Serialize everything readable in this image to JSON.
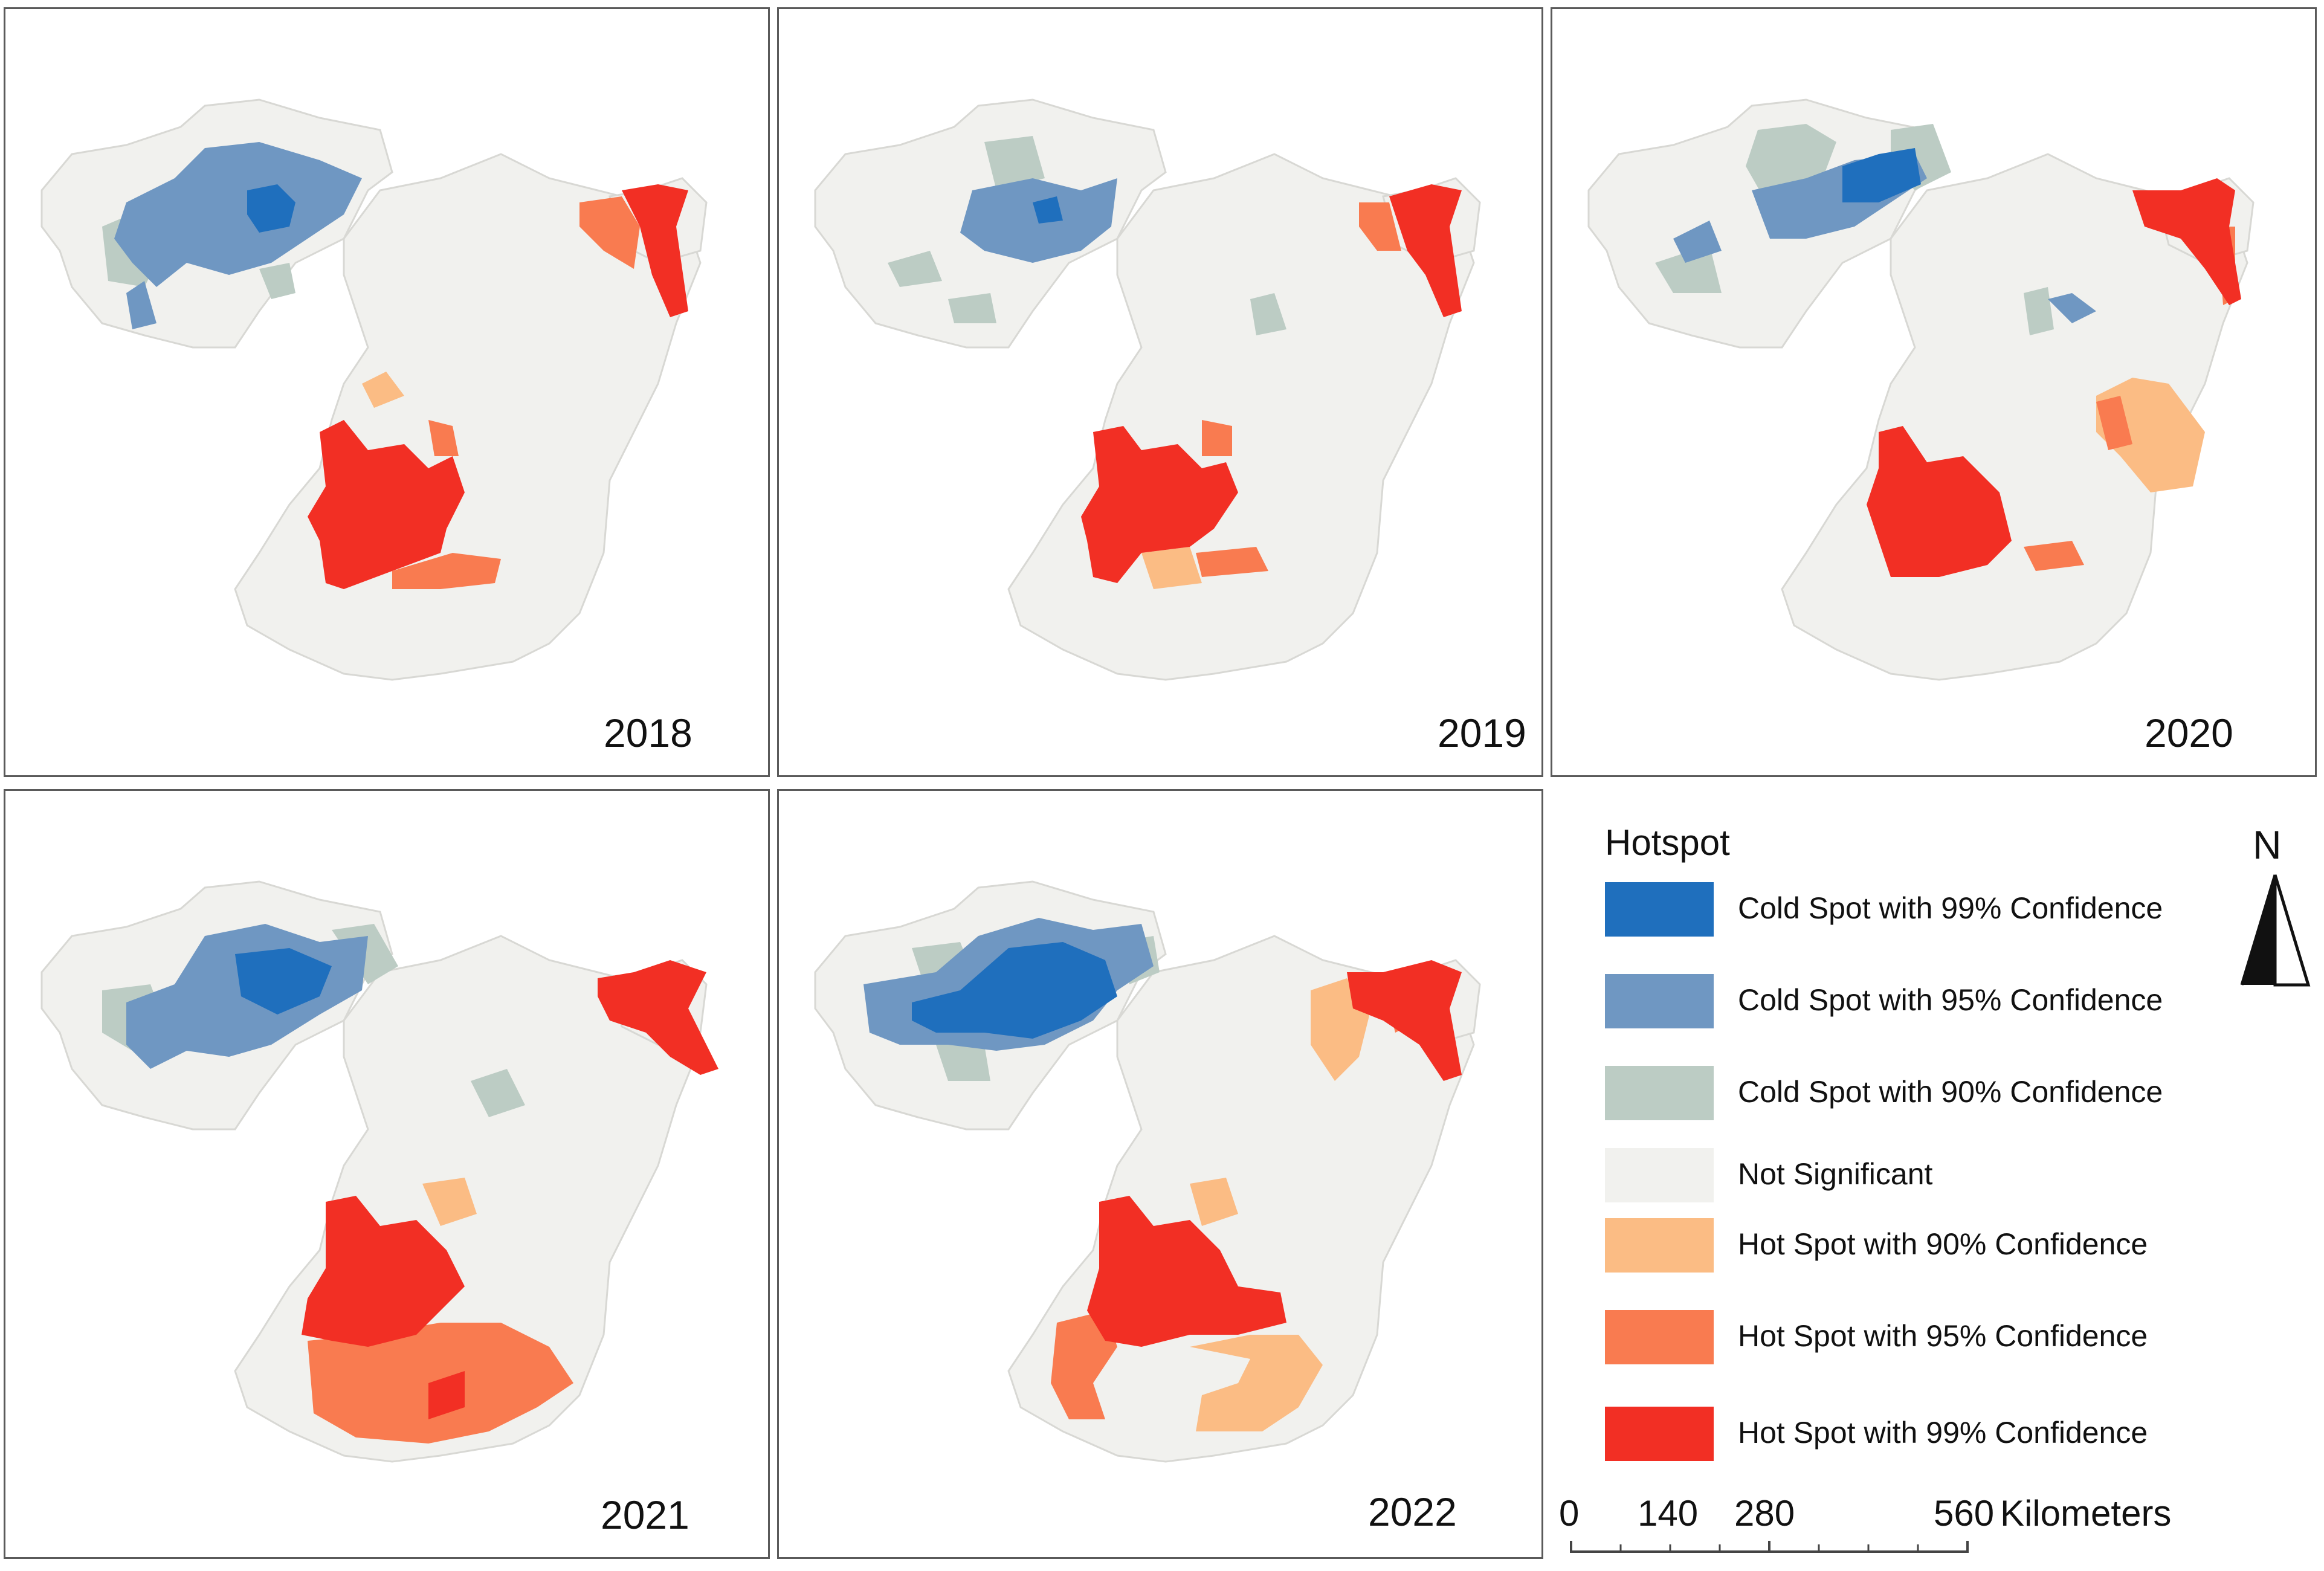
{
  "panels": [
    {
      "year": "2018"
    },
    {
      "year": "2019"
    },
    {
      "year": "2020"
    },
    {
      "year": "2021"
    },
    {
      "year": "2022"
    }
  ],
  "legend": {
    "title": "Hotspot",
    "items": [
      {
        "label": "Cold Spot with 99% Confidence",
        "color": "#1f6fbd"
      },
      {
        "label": "Cold Spot with 95% Confidence",
        "color": "#6f97c2"
      },
      {
        "label": "Cold Spot with 90% Confidence",
        "color": "#bcccc4"
      },
      {
        "label": "Not Significant",
        "color": "#f1f1ee"
      },
      {
        "label": "Hot Spot with 90% Confidence",
        "color": "#fbbc84"
      },
      {
        "label": "Hot Spot with 95% Confidence",
        "color": "#f97b50"
      },
      {
        "label": "Hot Spot with 99% Confidence",
        "color": "#f22f24"
      }
    ]
  },
  "north_arrow": {
    "label": "N"
  },
  "scale_bar": {
    "ticks": [
      "0",
      "140",
      "280",
      "560"
    ],
    "unit": "Kilometers"
  }
}
